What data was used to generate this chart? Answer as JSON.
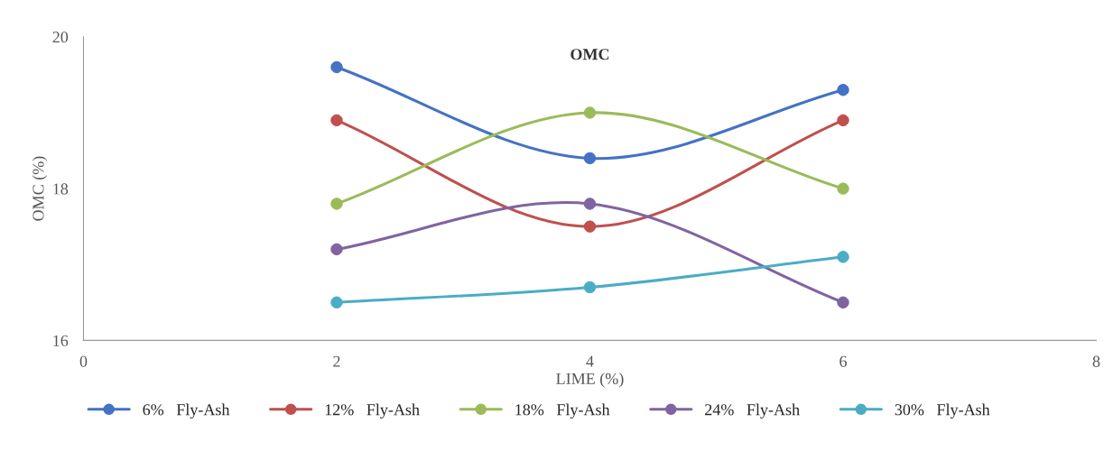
{
  "chart_data": {
    "type": "line",
    "title": "OMC",
    "xlabel": "LIME (%)",
    "ylabel": "OMC (%)",
    "x": [
      2,
      4,
      6
    ],
    "series": [
      {
        "name": "6%   Fly-Ash",
        "color": "#4472c4",
        "values": [
          19.6,
          18.4,
          19.3
        ]
      },
      {
        "name": "12%   Fly-Ash",
        "color": "#c0504d",
        "values": [
          18.9,
          17.5,
          18.9
        ]
      },
      {
        "name": "18%   Fly-Ash",
        "color": "#9bbb59",
        "values": [
          17.8,
          19.0,
          18.0
        ]
      },
      {
        "name": "24%   Fly-Ash",
        "color": "#8064a2",
        "values": [
          17.2,
          17.8,
          16.5
        ]
      },
      {
        "name": "30%   Fly-Ash",
        "color": "#4bacc6",
        "values": [
          16.5,
          16.7,
          17.1
        ]
      }
    ],
    "xlim": [
      0,
      8
    ],
    "xticks": [
      0,
      2,
      4,
      6,
      8
    ],
    "ylim": [
      16,
      20
    ],
    "yticks": [
      16,
      18,
      20
    ],
    "grid": false,
    "legend": "bottom",
    "marker": "circle",
    "line_style": "solid"
  }
}
